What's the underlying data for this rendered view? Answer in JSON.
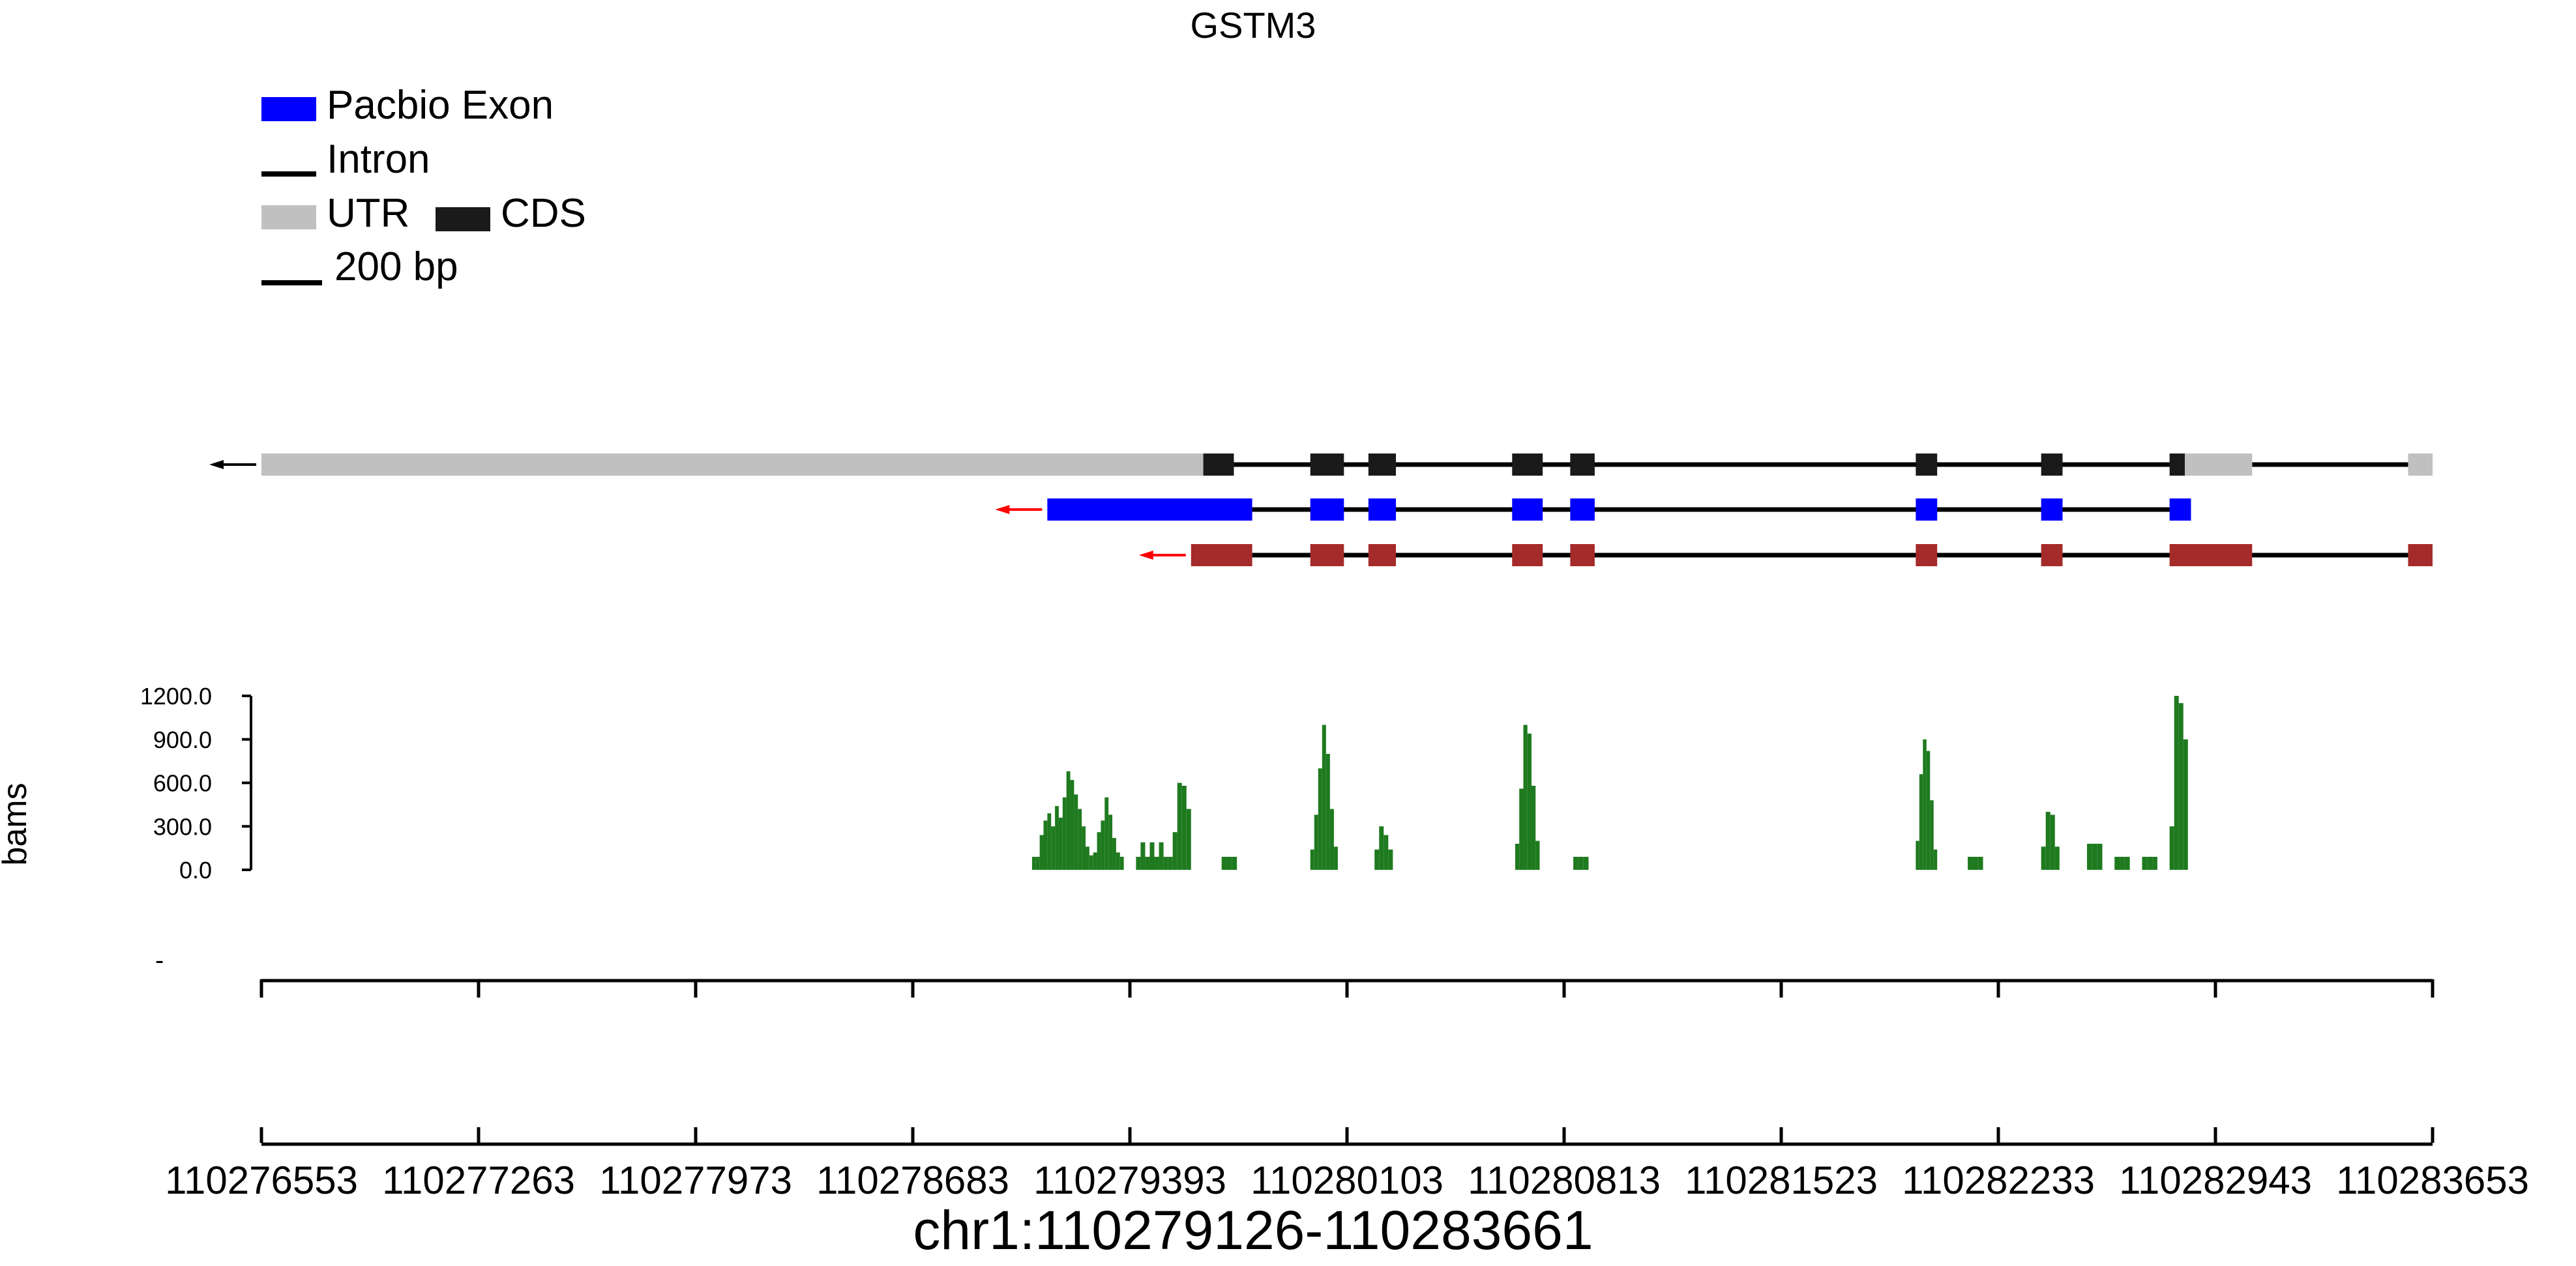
{
  "chart_data": {
    "type": "bar",
    "title": "GSTM3",
    "legend": {
      "position": "top-left",
      "entries": [
        {
          "key": "pacbio_exon",
          "label": "Pacbio Exon",
          "color": "#0000ff",
          "symbol": "box"
        },
        {
          "key": "intron",
          "label": "Intron",
          "color": "#000000",
          "symbol": "line"
        },
        {
          "key": "utr",
          "label": "UTR",
          "color": "#c0c0c0",
          "symbol": "box"
        },
        {
          "key": "cds",
          "label": "CDS",
          "color": "#1a1a1a",
          "symbol": "box"
        },
        {
          "key": "scale",
          "label": "200 bp",
          "color": "#000000",
          "symbol": "line"
        }
      ]
    },
    "genomic_range": [
      110276553,
      110283653
    ],
    "x_ticks": [
      110276553,
      110277263,
      110277973,
      110278683,
      110279393,
      110280103,
      110280813,
      110281523,
      110282233,
      110282943,
      110283653
    ],
    "x_tick_labels": [
      "110276553",
      "110277263",
      "110277973",
      "110278683",
      "110279393",
      "110280103",
      "110280813",
      "110281523",
      "110282233",
      "110282943",
      "110283653"
    ],
    "xlabel": "chr1:110279126-110283661",
    "tracks": [
      {
        "name": "",
        "strand": "-",
        "arrow_color": "#000000",
        "intron_color": "#000000",
        "segments": [
          {
            "start": 110276553,
            "end": 110279633,
            "type": "utr",
            "color": "#c0c0c0"
          },
          {
            "start": 110279633,
            "end": 110279733,
            "type": "cds",
            "color": "#1a1a1a"
          },
          {
            "start": 110279983,
            "end": 110280093,
            "type": "cds",
            "color": "#1a1a1a"
          },
          {
            "start": 110280173,
            "end": 110280263,
            "type": "cds",
            "color": "#1a1a1a"
          },
          {
            "start": 110280643,
            "end": 110280743,
            "type": "cds",
            "color": "#1a1a1a"
          },
          {
            "start": 110280833,
            "end": 110280913,
            "type": "cds",
            "color": "#1a1a1a"
          },
          {
            "start": 110281963,
            "end": 110282033,
            "type": "cds",
            "color": "#1a1a1a"
          },
          {
            "start": 110282373,
            "end": 110282443,
            "type": "cds",
            "color": "#1a1a1a"
          },
          {
            "start": 110282793,
            "end": 110282843,
            "type": "cds",
            "color": "#1a1a1a"
          },
          {
            "start": 110282843,
            "end": 110283063,
            "type": "utr",
            "color": "#c0c0c0"
          },
          {
            "start": 110283573,
            "end": 110283653,
            "type": "utr",
            "color": "#c0c0c0"
          }
        ],
        "introns": [
          [
            110279733,
            110282843
          ],
          [
            110283063,
            110283573
          ]
        ]
      },
      {
        "name": "",
        "strand": "-",
        "arrow_color": "#ff0000",
        "intron_color": "#000000",
        "segments": [
          {
            "start": 110279123,
            "end": 110279793,
            "type": "exon",
            "color": "#0000ff"
          },
          {
            "start": 110279983,
            "end": 110280093,
            "type": "exon",
            "color": "#0000ff"
          },
          {
            "start": 110280173,
            "end": 110280263,
            "type": "exon",
            "color": "#0000ff"
          },
          {
            "start": 110280643,
            "end": 110280743,
            "type": "exon",
            "color": "#0000ff"
          },
          {
            "start": 110280833,
            "end": 110280913,
            "type": "exon",
            "color": "#0000ff"
          },
          {
            "start": 110281963,
            "end": 110282033,
            "type": "exon",
            "color": "#0000ff"
          },
          {
            "start": 110282373,
            "end": 110282443,
            "type": "exon",
            "color": "#0000ff"
          },
          {
            "start": 110282793,
            "end": 110282863,
            "type": "exon",
            "color": "#0000ff"
          }
        ],
        "introns": [
          [
            110279793,
            110282863
          ]
        ]
      },
      {
        "name": "",
        "strand": "-",
        "arrow_color": "#ff0000",
        "intron_color": "#000000",
        "segments": [
          {
            "start": 110279593,
            "end": 110279793,
            "type": "exon",
            "color": "#a52a2a"
          },
          {
            "start": 110279983,
            "end": 110280093,
            "type": "exon",
            "color": "#a52a2a"
          },
          {
            "start": 110280173,
            "end": 110280263,
            "type": "exon",
            "color": "#a52a2a"
          },
          {
            "start": 110280643,
            "end": 110280743,
            "type": "exon",
            "color": "#a52a2a"
          },
          {
            "start": 110280833,
            "end": 110280913,
            "type": "exon",
            "color": "#a52a2a"
          },
          {
            "start": 110281963,
            "end": 110282033,
            "type": "exon",
            "color": "#a52a2a"
          },
          {
            "start": 110282373,
            "end": 110282443,
            "type": "exon",
            "color": "#a52a2a"
          },
          {
            "start": 110282793,
            "end": 110283063,
            "type": "exon",
            "color": "#a52a2a"
          },
          {
            "start": 110283573,
            "end": 110283653,
            "type": "exon",
            "color": "#a52a2a"
          }
        ],
        "introns": [
          [
            110279793,
            110283573
          ]
        ]
      }
    ],
    "coverage": {
      "ylabel": "bams",
      "ylim": [
        0,
        1200
      ],
      "y_ticks": [
        0,
        300,
        600,
        900,
        1200
      ],
      "y_tick_labels": [
        "0.0",
        "300.0",
        "600.0",
        "900.0",
        "1200.0"
      ],
      "color": "#1f7a1f",
      "peaks": [
        {
          "start": 110279073,
          "end": 110279373,
          "values": [
            90,
            90,
            240,
            340,
            390,
            300,
            440,
            360,
            500,
            680,
            620,
            520,
            420,
            300,
            160,
            100,
            120,
            260,
            340,
            500,
            380,
            220,
            120,
            90
          ]
        },
        {
          "start": 110279413,
          "end": 110279533,
          "values": [
            90,
            190,
            90,
            190,
            90,
            190,
            90,
            90
          ]
        },
        {
          "start": 110279533,
          "end": 110279593,
          "values": [
            260,
            600,
            580,
            420
          ]
        },
        {
          "start": 110279693,
          "end": 110279743,
          "values": [
            90,
            90,
            90
          ]
        },
        {
          "start": 110279983,
          "end": 110280073,
          "values": [
            140,
            380,
            700,
            1000,
            800,
            420,
            160
          ]
        },
        {
          "start": 110280193,
          "end": 110280253,
          "values": [
            140,
            300,
            240,
            140
          ]
        },
        {
          "start": 110280653,
          "end": 110280733,
          "values": [
            180,
            560,
            1000,
            940,
            580,
            200
          ]
        },
        {
          "start": 110280843,
          "end": 110280893,
          "values": [
            90,
            90,
            90
          ]
        },
        {
          "start": 110281963,
          "end": 110282033,
          "values": [
            200,
            660,
            900,
            820,
            480,
            140
          ]
        },
        {
          "start": 110282133,
          "end": 110282183,
          "values": [
            90,
            90,
            90
          ]
        },
        {
          "start": 110282373,
          "end": 110282433,
          "values": [
            160,
            400,
            380,
            160
          ]
        },
        {
          "start": 110282523,
          "end": 110282573,
          "values": [
            180,
            180,
            180
          ]
        },
        {
          "start": 110282613,
          "end": 110282663,
          "values": [
            90,
            90,
            90
          ]
        },
        {
          "start": 110282703,
          "end": 110282753,
          "values": [
            90,
            90,
            90
          ]
        },
        {
          "start": 110282793,
          "end": 110282853,
          "values": [
            300,
            1200,
            1150,
            900
          ]
        }
      ]
    }
  }
}
